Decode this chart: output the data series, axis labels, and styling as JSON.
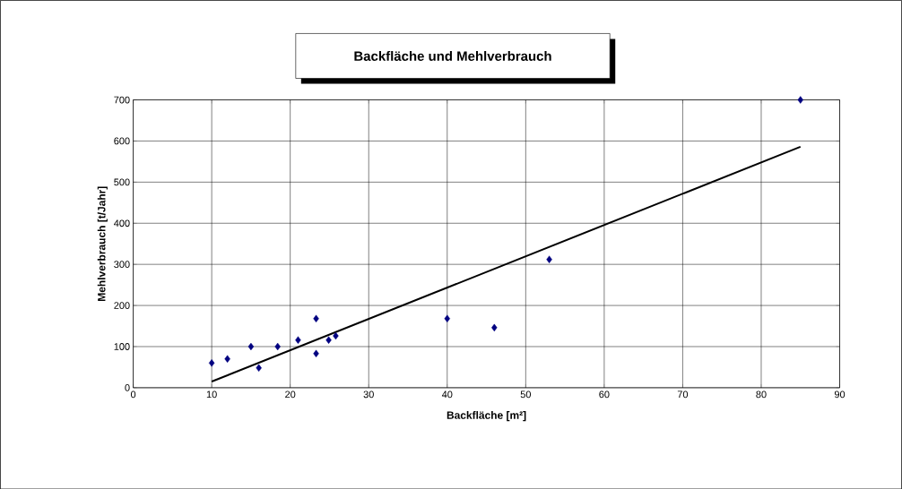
{
  "chart_data": {
    "type": "scatter",
    "title": "Backfläche und Mehlverbrauch",
    "xlabel": "Backfläche [m²]",
    "ylabel": "Mehlverbrauch [t/Jahr]",
    "xlim": [
      0,
      90
    ],
    "xticks": [
      0,
      10,
      20,
      30,
      40,
      50,
      60,
      70,
      80,
      90
    ],
    "ylim": [
      0,
      700
    ],
    "yticks": [
      0,
      100,
      200,
      300,
      400,
      500,
      600,
      700
    ],
    "grid": true,
    "series": [
      {
        "marker": "diamond",
        "color": "#000080",
        "x": [
          10,
          12,
          15,
          16,
          18.4,
          21,
          23.3,
          23.3,
          24.9,
          25.8,
          40,
          46,
          53,
          85
        ],
        "values": [
          60,
          70,
          100,
          48,
          100,
          116,
          168,
          83,
          116,
          126,
          168,
          146,
          312,
          700
        ]
      },
      {
        "type": "line",
        "marker": "none",
        "line_style": "solid",
        "color": "#000000",
        "x": [
          10,
          85
        ],
        "values": [
          15,
          586
        ]
      }
    ]
  }
}
